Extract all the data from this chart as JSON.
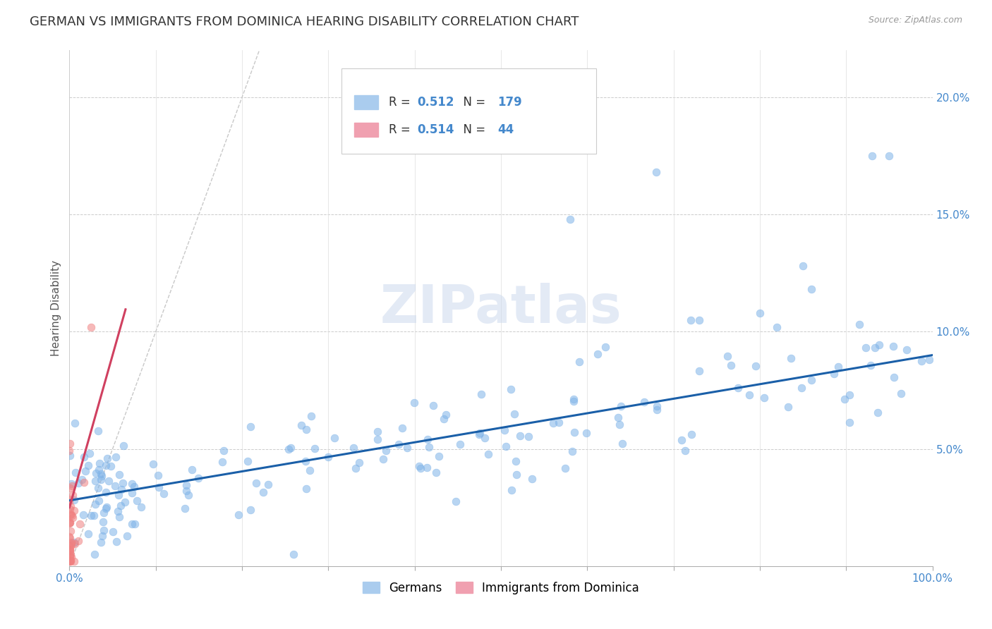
{
  "title": "GERMAN VS IMMIGRANTS FROM DOMINICA HEARING DISABILITY CORRELATION CHART",
  "source": "Source: ZipAtlas.com",
  "ylabel": "Hearing Disability",
  "watermark": "ZIPatlas",
  "german_R": 0.512,
  "german_N": 179,
  "dominica_R": 0.514,
  "dominica_N": 44,
  "german_color": "#7fb3e8",
  "dominica_color": "#f08080",
  "german_line_color": "#1a5fa8",
  "dominica_line_color": "#d04060",
  "diagonal_color": "#c8c8c8",
  "xlim": [
    0.0,
    1.0
  ],
  "ylim": [
    0.0,
    0.22
  ],
  "legend_label_german": "Germans",
  "legend_label_dominica": "Immigrants from Dominica",
  "title_fontsize": 13,
  "label_fontsize": 11,
  "tick_fontsize": 11,
  "blue_text_color": "#4488cc",
  "background_color": "#ffffff"
}
